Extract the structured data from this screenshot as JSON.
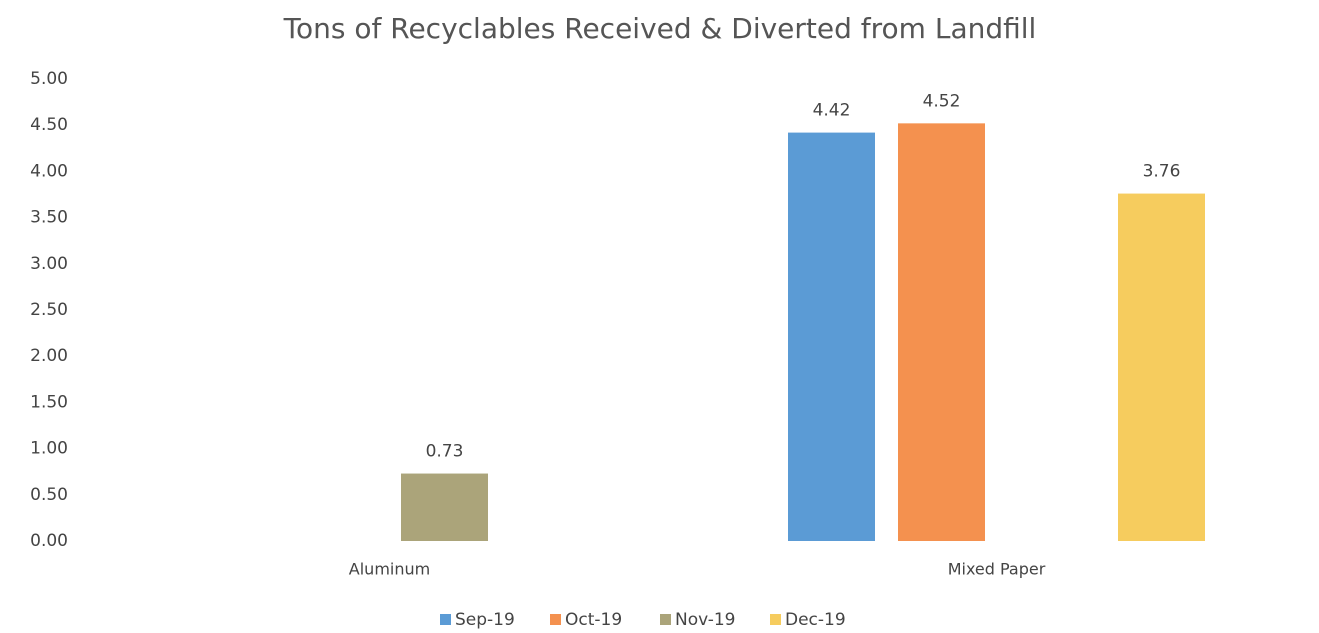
{
  "chart_data": {
    "type": "bar",
    "title": "Tons of Recyclables Received & Diverted from Landfill",
    "categories": [
      "Aluminum",
      "Mixed Paper"
    ],
    "series": [
      {
        "name": "Sep-19",
        "color": "#5b9bd5",
        "values": [
          null,
          4.42
        ]
      },
      {
        "name": "Oct-19",
        "color": "#f4914f",
        "values": [
          null,
          4.52
        ]
      },
      {
        "name": "Nov-19",
        "color": "#aba47a",
        "values": [
          0.73,
          null
        ]
      },
      {
        "name": "Dec-19",
        "color": "#f6cc5e",
        "values": [
          null,
          3.76
        ]
      }
    ],
    "ylim": [
      0,
      5
    ],
    "yticks": [
      {
        "value": 0,
        "label": "0.00"
      },
      {
        "value": 0.5,
        "label": "0.50"
      },
      {
        "value": 1,
        "label": "1.00"
      },
      {
        "value": 1.5,
        "label": "1.50"
      },
      {
        "value": 2,
        "label": "2.00"
      },
      {
        "value": 2.5,
        "label": "2.50"
      },
      {
        "value": 3,
        "label": "3.00"
      },
      {
        "value": 3.5,
        "label": "3.50"
      },
      {
        "value": 4,
        "label": "4.00"
      },
      {
        "value": 4.5,
        "label": "4.50"
      },
      {
        "value": 5,
        "label": "5.00"
      }
    ],
    "grid": true,
    "legend": "bottom"
  }
}
